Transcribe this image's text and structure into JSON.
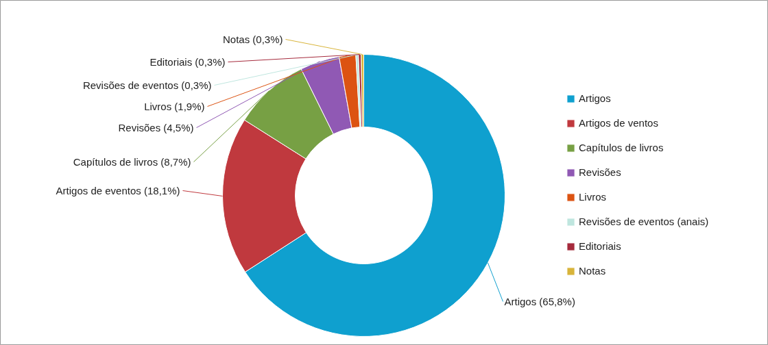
{
  "chart_data": {
    "type": "donut",
    "categories": [
      "Artigos",
      "Artigos de ventos",
      "Capítulos de livros",
      "Revisões",
      "Livros",
      "Revisões de eventos (anais)",
      "Editoriais",
      "Notas"
    ],
    "values": [
      65.8,
      18.1,
      8.7,
      4.5,
      1.9,
      0.3,
      0.3,
      0.3
    ],
    "colors": [
      "#0fa0cf",
      "#c0393e",
      "#77a044",
      "#9059b4",
      "#dc5312",
      "#bfe6df",
      "#a52a3c",
      "#d8b43a"
    ],
    "value_labels": [
      "Artigos (65,8%)",
      "Artigos de eventos (18,1%)",
      "Capítulos de livros (8,7%)",
      "Revisões (4,5%)",
      "Livros (1,9%)",
      "Revisões de eventos (0,3%)",
      "Editoriais (0,3%)",
      "Notas (0,3%)"
    ],
    "legend": "right"
  }
}
